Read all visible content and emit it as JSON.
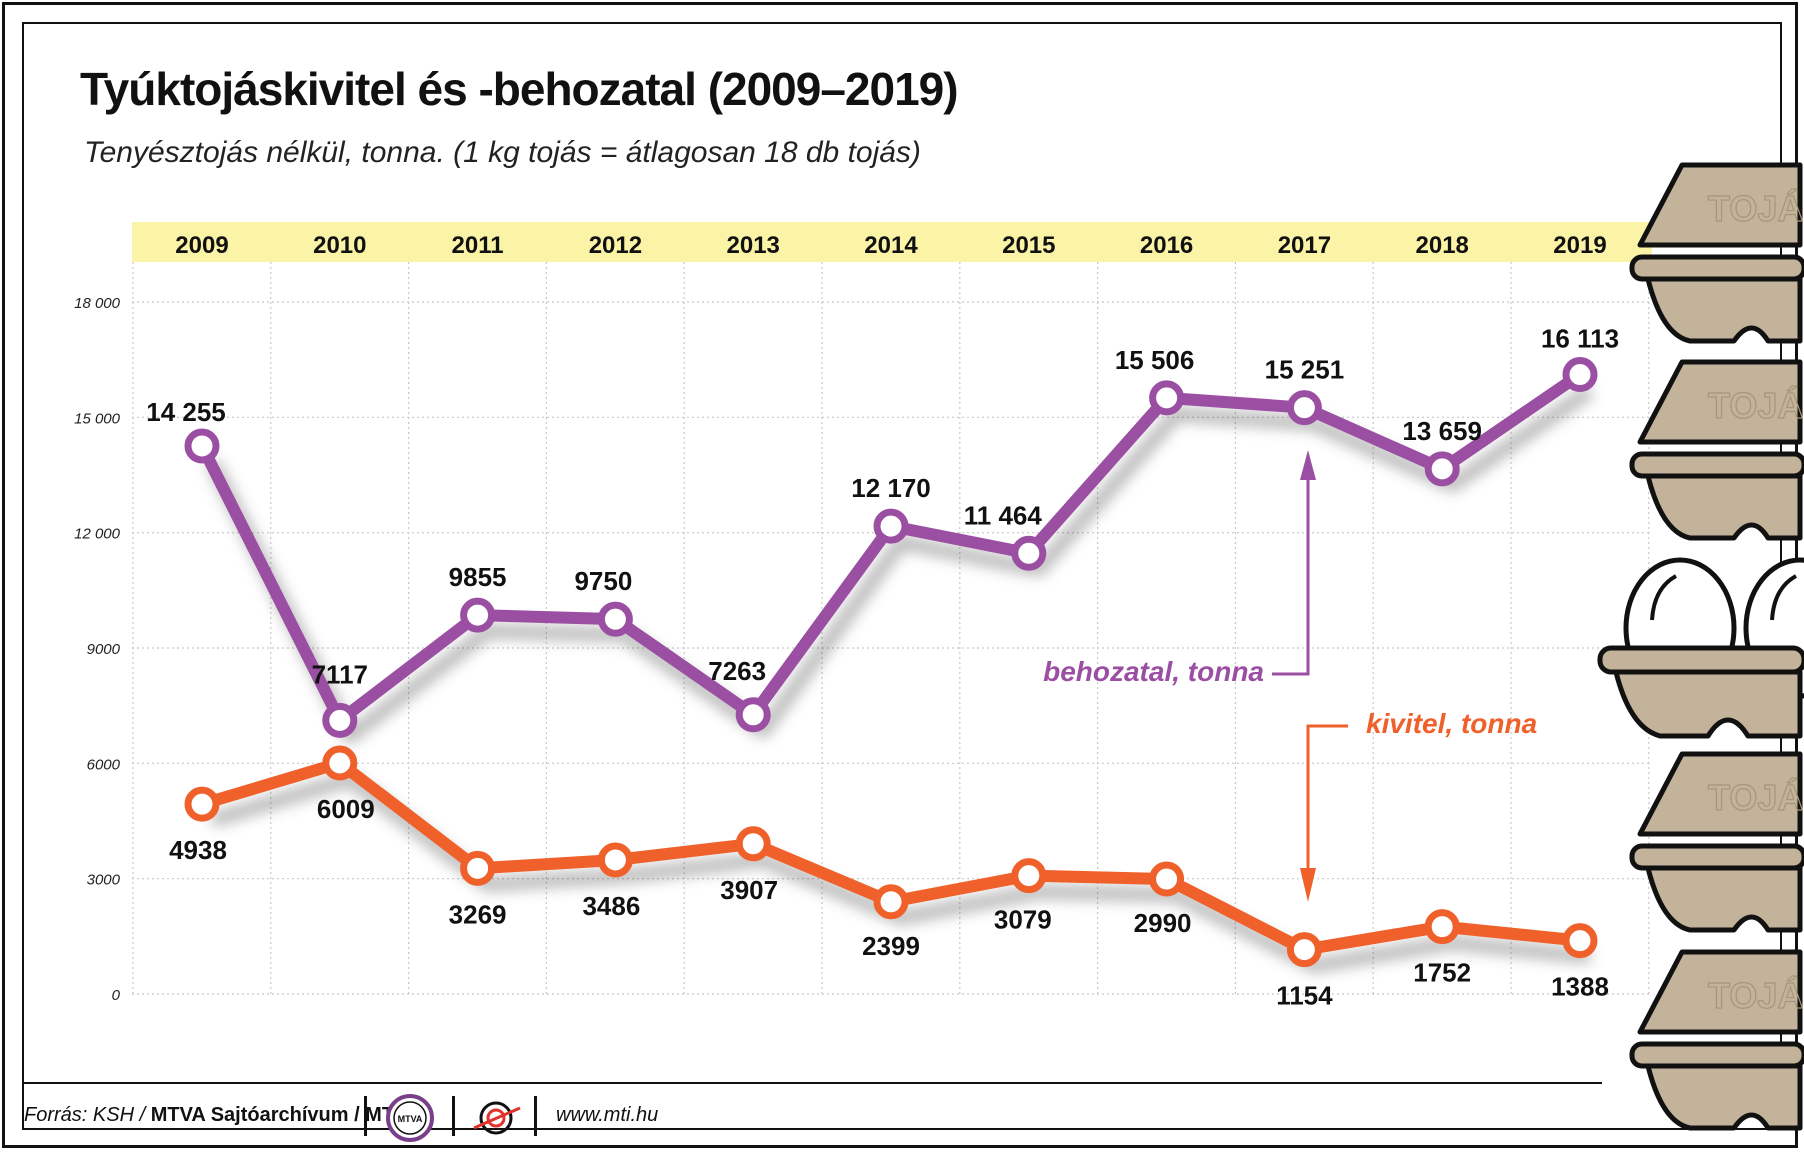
{
  "title": "Tyúktojáskivitel és -behozatal (2009–2019)",
  "subtitle": "Tenyésztojás nélkül, tonna. (1 kg tojás = átlagosan 18 db tojás)",
  "colors": {
    "behozatal": "#9b4fa3",
    "kivitel": "#f0602a",
    "year_band": "#fbf3a6",
    "carton": "#c2b39a"
  },
  "chart_data": {
    "type": "line",
    "title": "Tyúktojáskivitel és -behozatal (2009–2019)",
    "ylabel": "tonna",
    "ylim": [
      0,
      18000
    ],
    "yticks": [
      0,
      3000,
      6000,
      9000,
      12000,
      15000,
      18000
    ],
    "ytick_labels": [
      "0",
      "3000",
      "6000",
      "9000",
      "12 000",
      "15 000",
      "18 000"
    ],
    "categories": [
      "2009",
      "2010",
      "2011",
      "2012",
      "2013",
      "2014",
      "2015",
      "2016",
      "2017",
      "2018",
      "2019"
    ],
    "series": [
      {
        "name": "behozatal, tonna",
        "values": [
          14255,
          7117,
          9855,
          9750,
          7263,
          12170,
          11464,
          15506,
          15251,
          13659,
          16113
        ],
        "labels": [
          "14 255",
          "7117",
          "9855",
          "9750",
          "7263",
          "12 170",
          "11 464",
          "15 506",
          "15 251",
          "13 659",
          "16 113"
        ]
      },
      {
        "name": "kivitel, tonna",
        "values": [
          4938,
          6009,
          3269,
          3486,
          3907,
          2399,
          3079,
          2990,
          1154,
          1752,
          1388
        ],
        "labels": [
          "4938",
          "6009",
          "3269",
          "3486",
          "3907",
          "2399",
          "3079",
          "2990",
          "1154",
          "1752",
          "1388"
        ]
      }
    ],
    "annotations": [
      "behozatal, tonna",
      "kivitel, tonna"
    ]
  },
  "decor": {
    "carton_text": "TOJÁS"
  },
  "footer": {
    "source_prefix": "Forrás: KSH / ",
    "source_org": "MTVA Sajtóarchívum / MTI",
    "logo_text": "MTVA",
    "url": "www.mti.hu"
  }
}
